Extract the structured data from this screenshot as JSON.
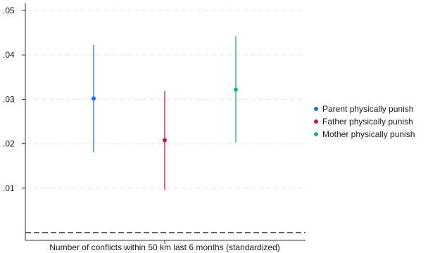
{
  "chart_data": {
    "type": "scatter",
    "title": "",
    "xlabel": "Number of conflicts within 50 km last 6 months (standardized)",
    "ylabel": "",
    "ylim": [
      0,
      0.0525
    ],
    "yticks": [
      0.01,
      0.02,
      0.03,
      0.04,
      0.05
    ],
    "ytick_labels": [
      ".01",
      ".02",
      ".03",
      ".04",
      ".05"
    ],
    "grid": true,
    "reference_line": {
      "y": 0,
      "style": "dashed"
    },
    "legend_position": "right",
    "series": [
      {
        "name": "Parent physically punish",
        "color": "#1a76d6",
        "estimate": 0.0302,
        "ci": [
          0.0181,
          0.0423
        ]
      },
      {
        "name": "Father physically punish",
        "color": "#c1144b",
        "estimate": 0.0208,
        "ci": [
          0.0097,
          0.0319
        ]
      },
      {
        "name": "Mother physically punish",
        "color": "#1bb07a",
        "estimate": 0.0322,
        "ci": [
          0.0203,
          0.0442
        ]
      }
    ]
  }
}
